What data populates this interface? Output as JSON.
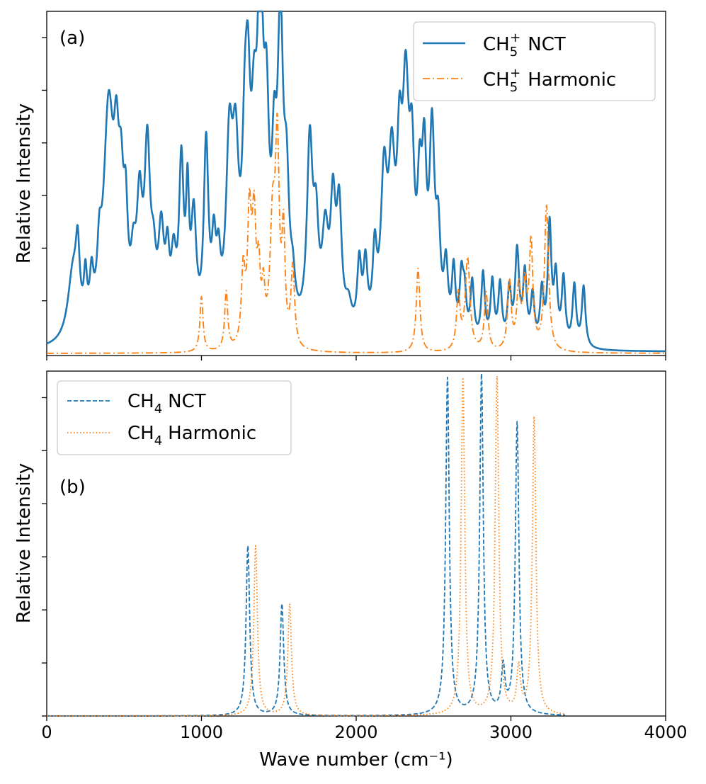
{
  "figure": {
    "xlabel": "Wave number (cm⁻¹)",
    "x_tick_labels": [
      "0",
      "1000",
      "2000",
      "3000",
      "4000"
    ]
  },
  "chart_data": [
    {
      "type": "line",
      "panel_label": "(a)",
      "ylabel": "Relative Intensity",
      "xlim": [
        0,
        4000
      ],
      "ylim": [
        0,
        1.3
      ],
      "x_ticks": [
        0,
        1000,
        2000,
        3000,
        4000
      ],
      "y_ticks": [
        0,
        0.2,
        0.4,
        0.6,
        0.8,
        1.0,
        1.2
      ],
      "y_tick_labels_shown": false,
      "legend_position": "top-right",
      "series": [
        {
          "name": "CH₅⁺ NCT",
          "legend_main": "CH",
          "legend_sub": "5",
          "legend_sup": "+",
          "legend_rest": "NCT",
          "color": "#1f77b4",
          "style": "solid",
          "baseline": 0.005,
          "peaks": [
            [
              170,
              0.26,
              40
            ],
            [
              200,
              0.25,
              15
            ],
            [
              250,
              0.18,
              12
            ],
            [
              290,
              0.17,
              14
            ],
            [
              340,
              0.2,
              16
            ],
            [
              400,
              0.85,
              40
            ],
            [
              450,
              0.45,
              20
            ],
            [
              480,
              0.4,
              20
            ],
            [
              510,
              0.34,
              16
            ],
            [
              560,
              0.2,
              20
            ],
            [
              600,
              0.44,
              22
            ],
            [
              650,
              0.66,
              22
            ],
            [
              690,
              0.2,
              20
            ],
            [
              740,
              0.36,
              22
            ],
            [
              780,
              0.24,
              15
            ],
            [
              820,
              0.25,
              20
            ],
            [
              870,
              0.62,
              18
            ],
            [
              910,
              0.45,
              12
            ],
            [
              950,
              0.42,
              20
            ],
            [
              1030,
              0.7,
              18
            ],
            [
              1080,
              0.28,
              16
            ],
            [
              1110,
              0.21,
              16
            ],
            [
              1180,
              0.65,
              25
            ],
            [
              1220,
              0.58,
              25
            ],
            [
              1280,
              0.5,
              20
            ],
            [
              1300,
              0.65,
              20
            ],
            [
              1340,
              0.55,
              22
            ],
            [
              1380,
              1.2,
              22
            ],
            [
              1420,
              0.65,
              20
            ],
            [
              1470,
              0.48,
              18
            ],
            [
              1510,
              1.1,
              22
            ],
            [
              1550,
              0.45,
              20
            ],
            [
              1590,
              0.13,
              18
            ],
            [
              1700,
              0.7,
              22
            ],
            [
              1740,
              0.35,
              20
            ],
            [
              1800,
              0.35,
              25
            ],
            [
              1850,
              0.45,
              20
            ],
            [
              1890,
              0.45,
              20
            ],
            [
              1950,
              0.1,
              25
            ],
            [
              2020,
              0.26,
              16
            ],
            [
              2060,
              0.25,
              16
            ],
            [
              2120,
              0.28,
              16
            ],
            [
              2180,
              0.56,
              25
            ],
            [
              2230,
              0.56,
              25
            ],
            [
              2280,
              0.54,
              20
            ],
            [
              2320,
              0.82,
              25
            ],
            [
              2360,
              0.53,
              20
            ],
            [
              2410,
              0.43,
              18
            ],
            [
              2440,
              0.56,
              18
            ],
            [
              2490,
              0.72,
              20
            ],
            [
              2530,
              0.34,
              18
            ],
            [
              2580,
              0.25,
              16
            ],
            [
              2630,
              0.25,
              14
            ],
            [
              2680,
              0.22,
              14
            ],
            [
              2700,
              0.16,
              14
            ],
            [
              2750,
              0.22,
              14
            ],
            [
              2820,
              0.26,
              14
            ],
            [
              2880,
              0.23,
              14
            ],
            [
              2930,
              0.22,
              14
            ],
            [
              2990,
              0.2,
              14
            ],
            [
              3040,
              0.35,
              16
            ],
            [
              3090,
              0.26,
              14
            ],
            [
              3140,
              0.18,
              14
            ],
            [
              3200,
              0.2,
              14
            ],
            [
              3250,
              0.45,
              14
            ],
            [
              3290,
              0.25,
              14
            ],
            [
              3340,
              0.25,
              14
            ],
            [
              3410,
              0.23,
              14
            ],
            [
              3470,
              0.23,
              14
            ]
          ]
        },
        {
          "name": "CH₅⁺ Harmonic",
          "legend_main": "CH",
          "legend_sub": "5",
          "legend_sup": "+",
          "legend_rest": "Harmonic",
          "color": "#ff7f0e",
          "style": "dashdot",
          "baseline": 0.0,
          "peaks": [
            [
              1000,
              0.21,
              12
            ],
            [
              1160,
              0.22,
              12
            ],
            [
              1270,
              0.28,
              14
            ],
            [
              1310,
              0.48,
              15
            ],
            [
              1340,
              0.45,
              15
            ],
            [
              1370,
              0.24,
              12
            ],
            [
              1400,
              0.18,
              12
            ],
            [
              1460,
              0.45,
              20
            ],
            [
              1490,
              0.72,
              15
            ],
            [
              1530,
              0.4,
              12
            ],
            [
              1590,
              0.3,
              14
            ],
            [
              2400,
              0.32,
              14
            ],
            [
              2660,
              0.21,
              14
            ],
            [
              2720,
              0.35,
              18
            ],
            [
              2840,
              0.22,
              14
            ],
            [
              2990,
              0.26,
              14
            ],
            [
              3050,
              0.23,
              14
            ],
            [
              3090,
              0.23,
              14
            ],
            [
              3130,
              0.4,
              14
            ],
            [
              3230,
              0.55,
              16
            ]
          ]
        }
      ]
    },
    {
      "type": "line",
      "panel_label": "(b)",
      "ylabel": "Relative Intensity",
      "xlim": [
        0,
        4000
      ],
      "ylim": [
        0,
        1.3
      ],
      "x_ticks": [
        0,
        1000,
        2000,
        3000,
        4000
      ],
      "y_ticks": [
        0,
        0.2,
        0.4,
        0.6,
        0.8,
        1.0,
        1.2
      ],
      "y_tick_labels_shown": false,
      "legend_position": "top-left",
      "series": [
        {
          "name": "CH₄ NCT",
          "legend_main": "CH",
          "legend_sub": "4",
          "legend_sup": "",
          "legend_rest": "NCT",
          "color": "#1f77b4",
          "style": "dashed",
          "baseline": 0.0,
          "x_end": 3350,
          "peaks": [
            [
              1300,
              0.64,
              14
            ],
            [
              1520,
              0.42,
              14
            ],
            [
              2590,
              1.27,
              14
            ],
            [
              2810,
              1.28,
              14
            ],
            [
              2950,
              0.17,
              14
            ],
            [
              3040,
              1.1,
              14
            ]
          ]
        },
        {
          "name": "CH₄ Harmonic",
          "legend_main": "CH",
          "legend_sub": "4",
          "legend_sup": "",
          "legend_rest": "Harmonic",
          "color": "#ff7f0e",
          "style": "dotted",
          "baseline": 0.0,
          "x_end": 3350,
          "peaks": [
            [
              1350,
              0.64,
              14
            ],
            [
              1570,
              0.42,
              14
            ],
            [
              2690,
              1.27,
              14
            ],
            [
              2910,
              1.27,
              14
            ],
            [
              3050,
              0.17,
              14
            ],
            [
              3150,
              1.12,
              14
            ]
          ]
        }
      ]
    }
  ]
}
